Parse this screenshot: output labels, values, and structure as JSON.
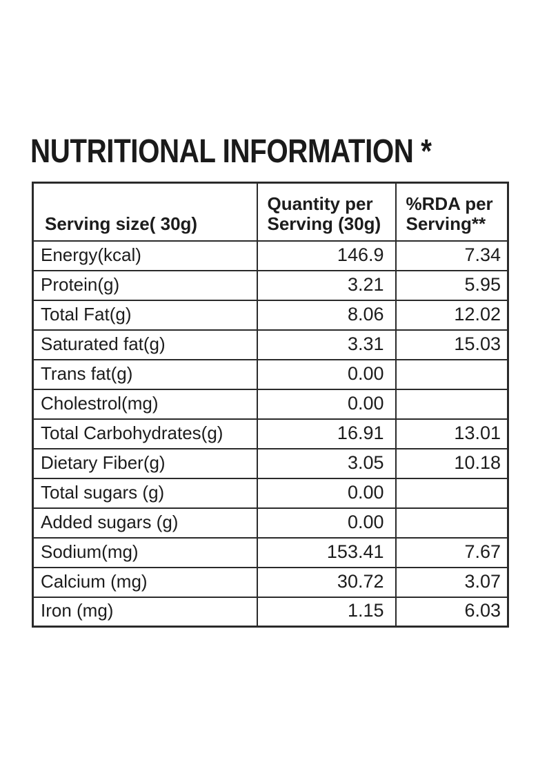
{
  "title": "NUTRITIONAL INFORMATION *",
  "table": {
    "columns": [
      {
        "line1": "Serving size( 30g)",
        "line2": ""
      },
      {
        "line1": "Quantity per",
        "line2": "Serving (30g)"
      },
      {
        "line1": "%RDA per",
        "line2": "Serving**"
      }
    ],
    "rows": [
      {
        "label": "Energy(kcal)",
        "qty": "146.9",
        "rda": "7.34"
      },
      {
        "label": "Protein(g)",
        "qty": "3.21",
        "rda": "5.95"
      },
      {
        "label": "Total Fat(g)",
        "qty": "8.06",
        "rda": "12.02"
      },
      {
        "label": "Saturated fat(g)",
        "qty": "3.31",
        "rda": "15.03"
      },
      {
        "label": "Trans fat(g)",
        "qty": "0.00",
        "rda": ""
      },
      {
        "label": "Cholestrol(mg)",
        "qty": "0.00",
        "rda": ""
      },
      {
        "label": "Total Carbohydrates(g)",
        "qty": "16.91",
        "rda": "13.01"
      },
      {
        "label": "Dietary Fiber(g)",
        "qty": "3.05",
        "rda": "10.18"
      },
      {
        "label": "Total sugars (g)",
        "qty": "0.00",
        "rda": ""
      },
      {
        "label": "Added sugars (g)",
        "qty": "0.00",
        "rda": ""
      },
      {
        "label": "Sodium(mg)",
        "qty": "153.41",
        "rda": "7.67"
      },
      {
        "label": "Calcium (mg)",
        "qty": "30.72",
        "rda": "3.07"
      },
      {
        "label": "Iron (mg)",
        "qty": "1.15",
        "rda": "6.03"
      }
    ]
  },
  "colors": {
    "background": "#ffffff",
    "text": "#1c1c1c",
    "border": "#2a2a2a"
  }
}
